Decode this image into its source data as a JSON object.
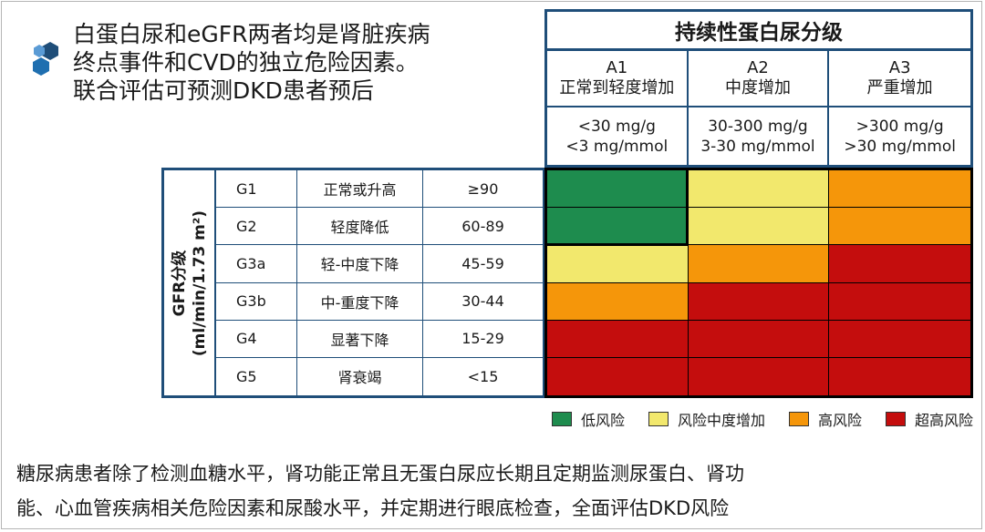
{
  "headline": {
    "lines": [
      "白蛋白尿和eGFR两者均是肾脏疾病",
      "终点事件和CVD的独立危险因素。",
      "联合评估可预测DKD患者预后"
    ]
  },
  "albuminuria": {
    "title": "持续性蛋白尿分级",
    "columns": [
      {
        "code": "A1",
        "desc": "正常到轻度增加",
        "range1": "<30 mg/g",
        "range2": "<3 mg/mmol"
      },
      {
        "code": "A2",
        "desc": "中度增加",
        "range1": "30-300 mg/g",
        "range2": "3-30 mg/mmol"
      },
      {
        "code": "A3",
        "desc": "严重增加",
        "range1": ">300 mg/g",
        "range2": ">30 mg/mmol"
      }
    ]
  },
  "gfr": {
    "axis_title": "GFR分级",
    "axis_unit": "(ml/min/1.73 m²)",
    "rows": [
      {
        "code": "G1",
        "desc": "正常或升高",
        "range": "≥90"
      },
      {
        "code": "G2",
        "desc": "轻度降低",
        "range": "60-89"
      },
      {
        "code": "G3a",
        "desc": "轻-中度下降",
        "range": "45-59"
      },
      {
        "code": "G3b",
        "desc": "中-重度下降",
        "range": "30-44"
      },
      {
        "code": "G4",
        "desc": "显著下降",
        "range": "15-29"
      },
      {
        "code": "G5",
        "desc": "肾衰竭",
        "range": "<15"
      }
    ]
  },
  "risk_colors": {
    "low": "#1e8c4e",
    "moderate": "#f2e86d",
    "high": "#f5960a",
    "very_high": "#c40d0d"
  },
  "risk_matrix": [
    [
      "low",
      "moderate",
      "high"
    ],
    [
      "low",
      "moderate",
      "high"
    ],
    [
      "moderate",
      "high",
      "very_high"
    ],
    [
      "high",
      "very_high",
      "very_high"
    ],
    [
      "very_high",
      "very_high",
      "very_high"
    ],
    [
      "very_high",
      "very_high",
      "very_high"
    ]
  ],
  "legend": [
    {
      "key": "low",
      "label": "低风险"
    },
    {
      "key": "moderate",
      "label": "风险中度增加"
    },
    {
      "key": "high",
      "label": "高风险"
    },
    {
      "key": "very_high",
      "label": "超高风险"
    }
  ],
  "footer": {
    "lines": [
      "糖尿病患者除了检测血糖水平，肾功能正常且无蛋白尿应长期且定期监测尿蛋白、肾功",
      "能、心血管疾病相关危险因素和尿酸水平，并定期进行眼底检查，全面评估DKD风险"
    ]
  },
  "accent_color": "#1f4e79"
}
